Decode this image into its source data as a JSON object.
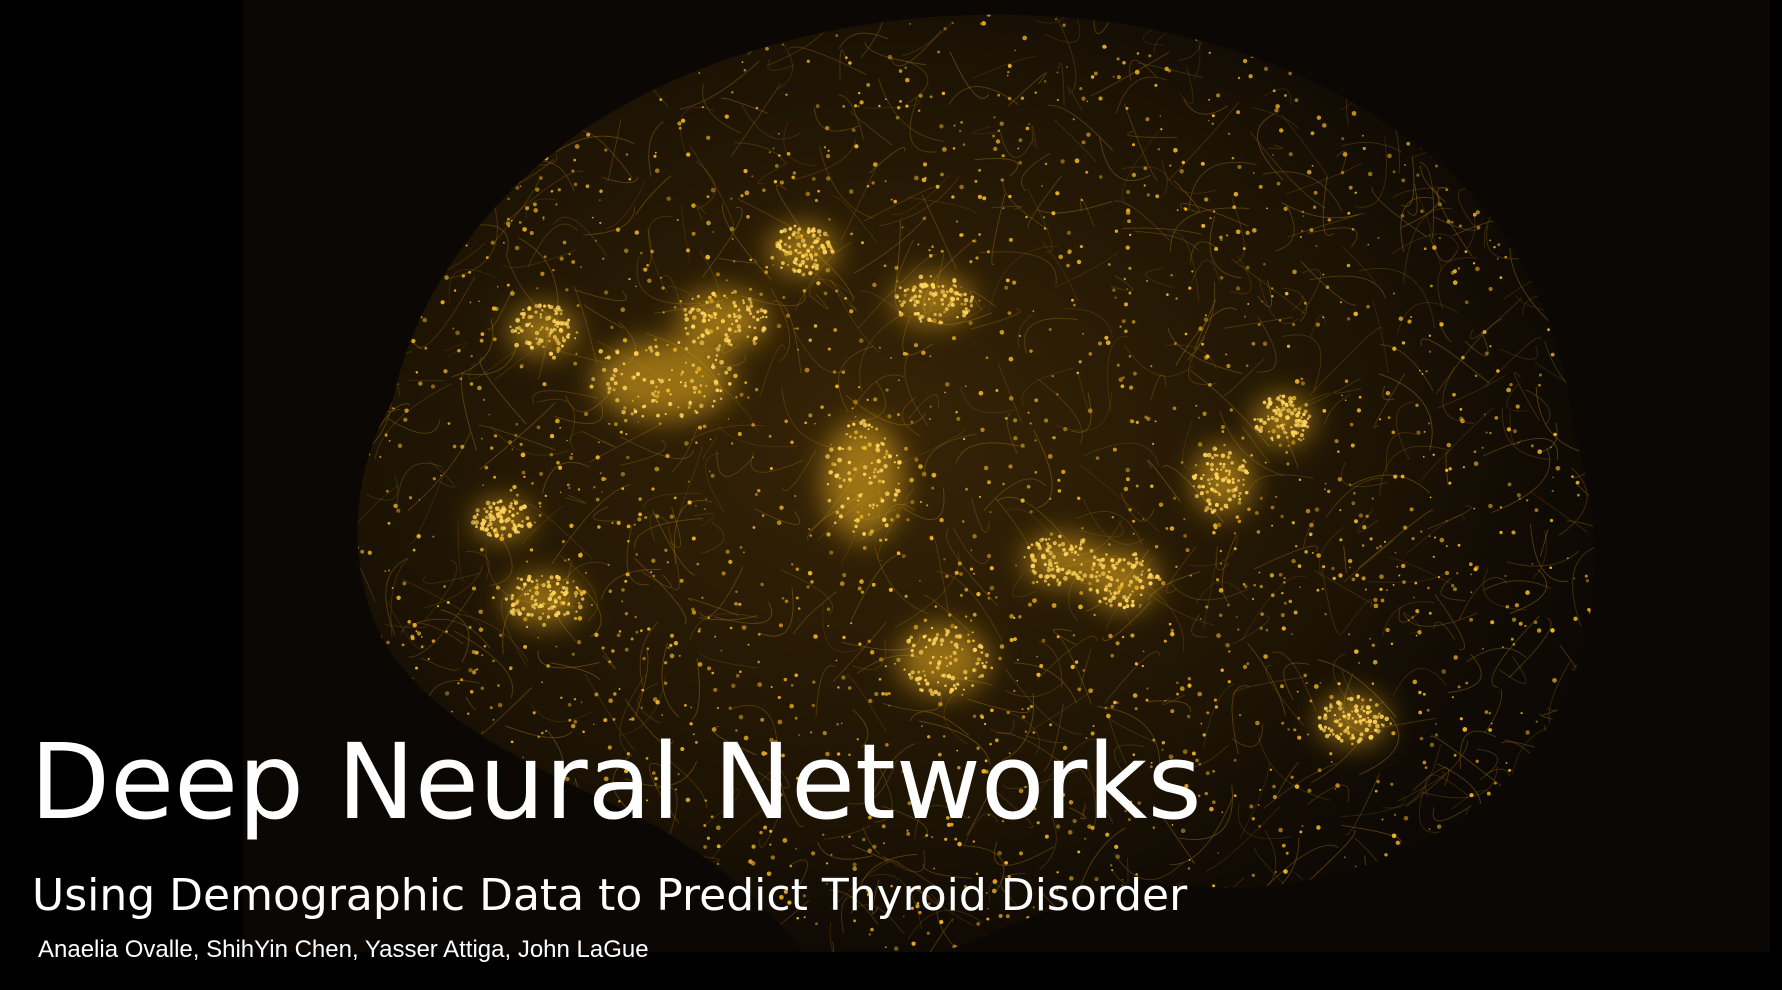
{
  "slide": {
    "title": "Deep Neural Networks",
    "subtitle": "Using Demographic Data to Predict Thyroid Disorder",
    "authors": "Anaelia Ovalle, ShihYin Chen, Yasser Attiga, John LaGue"
  },
  "background_image": {
    "icon": "neural-network-brain-image",
    "colors": {
      "glow": "#f0b51e",
      "dim": "#8a6410",
      "panel": "#0b0704",
      "page": "#000000"
    }
  }
}
